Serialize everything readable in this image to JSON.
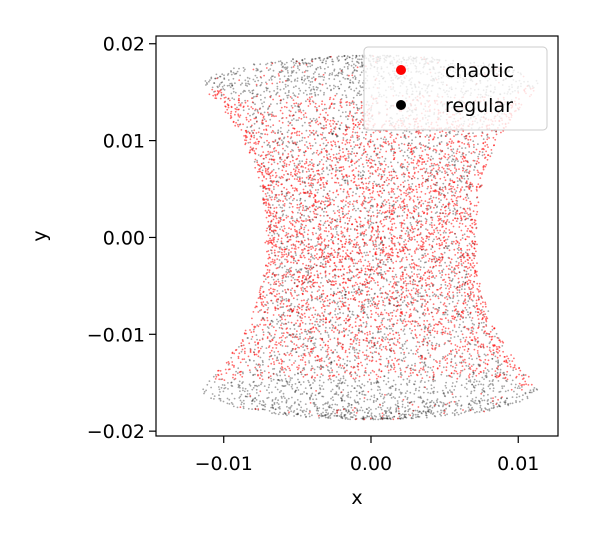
{
  "chart_data": {
    "type": "scatter",
    "xlabel": "x",
    "ylabel": "y",
    "xlim": [
      -0.0146,
      0.0127
    ],
    "ylim": [
      -0.0205,
      0.0208
    ],
    "xticks": [
      {
        "value": -0.01,
        "label": "−0.01"
      },
      {
        "value": 0.0,
        "label": "0.00"
      },
      {
        "value": 0.01,
        "label": "0.01"
      }
    ],
    "yticks": [
      {
        "value": 0.02,
        "label": "0.02"
      },
      {
        "value": 0.01,
        "label": "0.01"
      },
      {
        "value": 0.0,
        "label": "0.00"
      },
      {
        "value": -0.01,
        "label": "−0.01"
      },
      {
        "value": -0.02,
        "label": "−0.02"
      }
    ],
    "grid": false,
    "legend_position": "top-right",
    "series": [
      {
        "name": "chaotic",
        "color": "#ff0000",
        "marker": "dot"
      },
      {
        "name": "regular",
        "color": "#000000",
        "marker": "dot"
      }
    ],
    "region": {
      "shape": "hourglass (concave left/right sides)",
      "top_y": 0.0188,
      "bottom_y": -0.0188,
      "corner_x": 0.0115,
      "corner_y": 0.0156,
      "waist_x": 0.0072,
      "waist_y": 0.0
    }
  }
}
